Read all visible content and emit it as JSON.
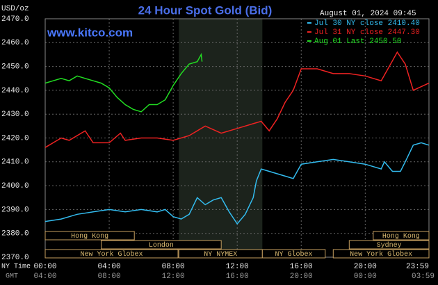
{
  "chart_data": {
    "type": "line",
    "title": "24 Hour Spot Gold (Bid)",
    "y_label": "USD/oz",
    "timestamp": "August 01, 2024 09:45",
    "watermark": "www.kitco.com",
    "x_label": "NY Time",
    "x2_label": "GMT",
    "xlim": [
      0,
      23.983
    ],
    "xticks": [
      {
        "value": 0,
        "label": "00:00"
      },
      {
        "value": 4,
        "label": "04:00"
      },
      {
        "value": 8,
        "label": "08:00"
      },
      {
        "value": 12,
        "label": "12:00"
      },
      {
        "value": 16,
        "label": "16:00"
      },
      {
        "value": 20,
        "label": "20:00"
      },
      {
        "value": 23.983,
        "label": "23:59"
      }
    ],
    "x2_labels": [
      "04:00",
      "08:00",
      "12:00",
      "16:00",
      "20:00",
      "00:00",
      "03:59"
    ],
    "ylim": [
      2370,
      2470
    ],
    "yticks": [
      {
        "value": 2370,
        "label": "2370.0"
      },
      {
        "value": 2380,
        "label": "2380.0"
      },
      {
        "value": 2390,
        "label": "2390.0"
      },
      {
        "value": 2400,
        "label": "2400.0"
      },
      {
        "value": 2410,
        "label": "2410.0"
      },
      {
        "value": 2420,
        "label": "2420.0"
      },
      {
        "value": 2430,
        "label": "2430.0"
      },
      {
        "value": 2440,
        "label": "2440.0"
      },
      {
        "value": 2450,
        "label": "2450.0"
      },
      {
        "value": 2460,
        "label": "2460.0"
      },
      {
        "value": 2470,
        "label": "2470.0"
      }
    ],
    "grid": true,
    "legend": "top-right",
    "sessions": [
      [
        {
          "label": "Hong Kong",
          "start": 0,
          "end": 5.57
        },
        {
          "label": "Hong Kong",
          "start": 20.5,
          "end": 23.983
        }
      ],
      [
        {
          "label": "London",
          "start": 3.5,
          "end": 11
        },
        {
          "label": "Sydney",
          "start": 19,
          "end": 23.983
        }
      ],
      [
        {
          "label": "New York Globex",
          "start": 0,
          "end": 8.3
        },
        {
          "label": "NY NYMEX",
          "start": 8.35,
          "end": 13.57
        },
        {
          "label": "NY Globex",
          "start": 13.57,
          "end": 17.5
        },
        {
          "label": "New York Globex",
          "start": 18,
          "end": 23.983
        }
      ]
    ],
    "series": [
      {
        "name": "Jul 30 NY close 2410.40",
        "color": "#33bbee",
        "x": [
          0,
          1,
          2,
          3,
          4,
          5,
          6,
          7,
          7.5,
          8,
          8.5,
          9,
          9.5,
          10,
          10.5,
          11,
          11.5,
          12,
          12.5,
          13,
          13.2,
          13.5,
          14,
          15,
          15.5,
          16,
          17,
          18,
          19,
          20,
          21,
          21.2,
          21.7,
          22.2,
          22.5,
          23,
          23.5,
          23.98
        ],
        "values": [
          2385,
          2386,
          2388,
          2389,
          2390,
          2389,
          2390,
          2389,
          2390,
          2387,
          2386,
          2388,
          2395,
          2392,
          2394,
          2395,
          2389,
          2384,
          2388,
          2395,
          2402,
          2407,
          2406,
          2404,
          2403,
          2409,
          2410,
          2411,
          2410,
          2409,
          2407,
          2410,
          2406,
          2406,
          2410,
          2417,
          2418,
          2417
        ]
      },
      {
        "name": "Jul 31 NY close 2447.30",
        "color": "#ee2222",
        "x": [
          0,
          1,
          1.5,
          2.5,
          3,
          4,
          4.7,
          5,
          6,
          7,
          8,
          9,
          9.5,
          10,
          11,
          12,
          13,
          13.5,
          14,
          14.5,
          15,
          15.5,
          16,
          17,
          18,
          19,
          20,
          21,
          21.5,
          22,
          22.5,
          23,
          23.98
        ],
        "values": [
          2416,
          2420,
          2419,
          2423,
          2418,
          2418,
          2422,
          2419,
          2420,
          2420,
          2419,
          2421,
          2423,
          2425,
          2422,
          2424,
          2426,
          2427,
          2423,
          2428,
          2435,
          2440,
          2449,
          2449,
          2447,
          2447,
          2446,
          2444,
          2450,
          2456,
          2451,
          2440,
          2443
        ]
      },
      {
        "name": "Aug 01 Last 2450.50",
        "color": "#22dd22",
        "x": [
          0,
          0.5,
          1,
          1.5,
          2,
          2.5,
          3,
          3.5,
          4,
          4.5,
          5,
          5.5,
          6,
          6.5,
          7,
          7.5,
          8,
          8.5,
          9,
          9.5,
          9.75,
          9.8
        ],
        "values": [
          2443,
          2444,
          2445,
          2444,
          2446,
          2445,
          2444,
          2443,
          2441,
          2437,
          2434,
          2432,
          2431,
          2434,
          2434,
          2436,
          2442,
          2447,
          2451,
          2452,
          2455,
          2452
        ]
      }
    ]
  }
}
